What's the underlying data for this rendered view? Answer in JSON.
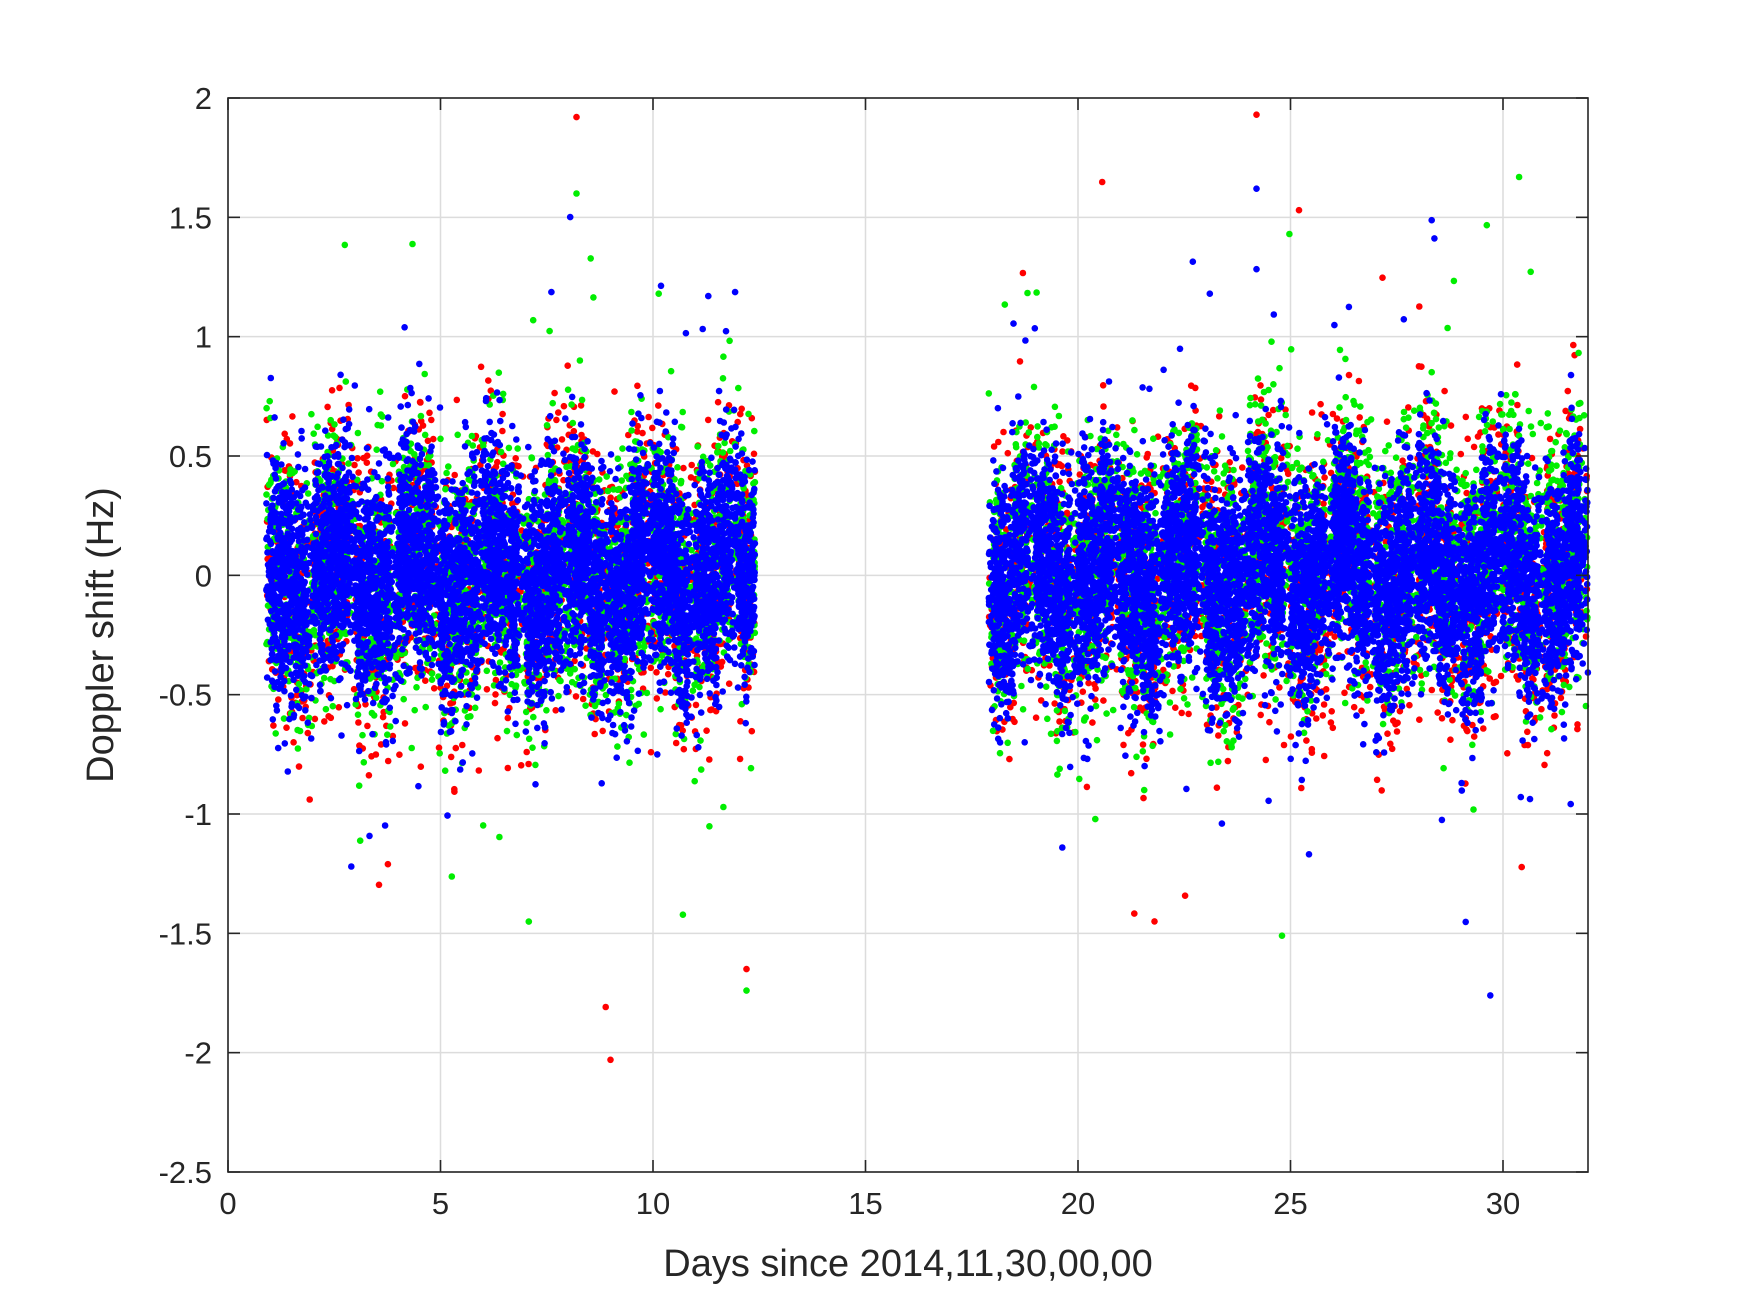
{
  "chart_data": {
    "type": "scatter",
    "title": "",
    "xlabel": "Days since 2014,11,30,00,00",
    "ylabel": "Doppler shift (Hz)",
    "xlim": [
      0,
      32
    ],
    "ylim": [
      -2.5,
      2
    ],
    "xticks": [
      0,
      5,
      10,
      15,
      20,
      25,
      30
    ],
    "yticks": [
      -2.5,
      -2,
      -1.5,
      -1,
      -0.5,
      0,
      0.5,
      1,
      1.5,
      2
    ],
    "grid": true,
    "legend": "none",
    "series": [
      {
        "color": "#ff0000"
      },
      {
        "color": "#00ee00"
      },
      {
        "color": "#0000ff"
      }
    ],
    "point_spread_ranges": [
      {
        "x": [
          0.9,
          12.4
        ]
      },
      {
        "x": [
          17.9,
          32
        ]
      }
    ],
    "extreme_points": [
      {
        "series": 0,
        "x": 8.2,
        "y": 1.92
      },
      {
        "series": 0,
        "x": 9.0,
        "y": -2.03
      },
      {
        "series": 0,
        "x": 24.2,
        "y": 1.93
      },
      {
        "series": 0,
        "x": 25.2,
        "y": 1.53
      },
      {
        "series": 0,
        "x": 12.2,
        "y": -1.65
      },
      {
        "series": 0,
        "x": 21.8,
        "y": -1.45
      },
      {
        "series": 1,
        "x": 8.2,
        "y": 1.6
      },
      {
        "series": 1,
        "x": 12.2,
        "y": -1.74
      },
      {
        "series": 1,
        "x": 24.8,
        "y": -1.51
      },
      {
        "series": 2,
        "x": 24.2,
        "y": 1.62
      },
      {
        "series": 2,
        "x": 29.7,
        "y": -1.76
      },
      {
        "series": 2,
        "x": 2.9,
        "y": -1.22
      },
      {
        "series": 2,
        "x": 11.3,
        "y": 1.17
      },
      {
        "series": 2,
        "x": 23.1,
        "y": 1.18
      }
    ]
  }
}
